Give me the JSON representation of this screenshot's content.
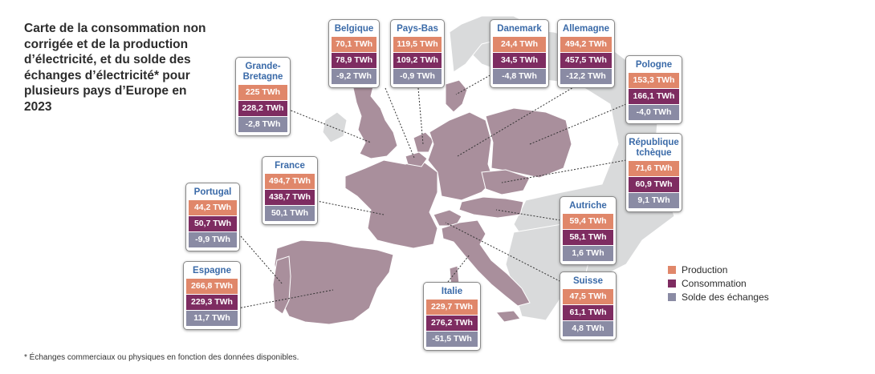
{
  "title": "Carte de la consommation non corrigée et de la production d’électricité, et du solde des échanges d’électricité* pour plusieurs pays d’Europe en 2023",
  "footnote": "* Échanges commerciaux ou physiques en fonction des données disponibles.",
  "colors": {
    "production": "#e0876a",
    "consommation": "#7e2c61",
    "solde": "#8a8ba4",
    "title": "#3a6aa8",
    "land": "#a98f9c",
    "land_other": "#d9dadb",
    "sea": "#ffffff"
  },
  "legend": {
    "production": "Production",
    "consommation": "Consommation",
    "solde": "Solde des échanges"
  },
  "countries": [
    {
      "key": "belgique",
      "name": "Belgique",
      "production": "70,1 TWh",
      "consommation": "78,9 TWh",
      "solde": "-9,2 TWh"
    },
    {
      "key": "pays-bas",
      "name": "Pays-Bas",
      "production": "119,5 TWh",
      "consommation": "109,2 TWh",
      "solde": "-0,9 TWh"
    },
    {
      "key": "danemark",
      "name": "Danemark",
      "production": "24,4 TWh",
      "consommation": "34,5 TWh",
      "solde": "-4,8 TWh"
    },
    {
      "key": "allemagne",
      "name": "Allemagne",
      "production": "494,2 TWh",
      "consommation": "457,5 TWh",
      "solde": "-12,2 TWh"
    },
    {
      "key": "grande-bretagne",
      "name": "Grande-Bretagne",
      "production": "225 TWh",
      "consommation": "228,2 TWh",
      "solde": "-2,8 TWh"
    },
    {
      "key": "pologne",
      "name": "Pologne",
      "production": "153,3 TWh",
      "consommation": "166,1 TWh",
      "solde": "-4,0 TWh"
    },
    {
      "key": "france",
      "name": "France",
      "production": "494,7 TWh",
      "consommation": "438,7 TWh",
      "solde": "50,1 TWh"
    },
    {
      "key": "republique-tcheque",
      "name": "République tchèque",
      "production": "71,6 TWh",
      "consommation": "60,9 TWh",
      "solde": "9,1 TWh"
    },
    {
      "key": "portugal",
      "name": "Portugal",
      "production": "44,2 TWh",
      "consommation": "50,7 TWh",
      "solde": "-9,9 TWh"
    },
    {
      "key": "autriche",
      "name": "Autriche",
      "production": "59,4 TWh",
      "consommation": "58,1 TWh",
      "solde": "1,6 TWh"
    },
    {
      "key": "espagne",
      "name": "Espagne",
      "production": "266,8 TWh",
      "consommation": "229,3 TWh",
      "solde": "11,7 TWh"
    },
    {
      "key": "italie",
      "name": "Italie",
      "production": "229,7 TWh",
      "consommation": "276,2 TWh",
      "solde": "-51,5 TWh"
    },
    {
      "key": "suisse",
      "name": "Suisse",
      "production": "47,5 TWh",
      "consommation": "61,1 TWh",
      "solde": "4,8 TWh"
    }
  ]
}
